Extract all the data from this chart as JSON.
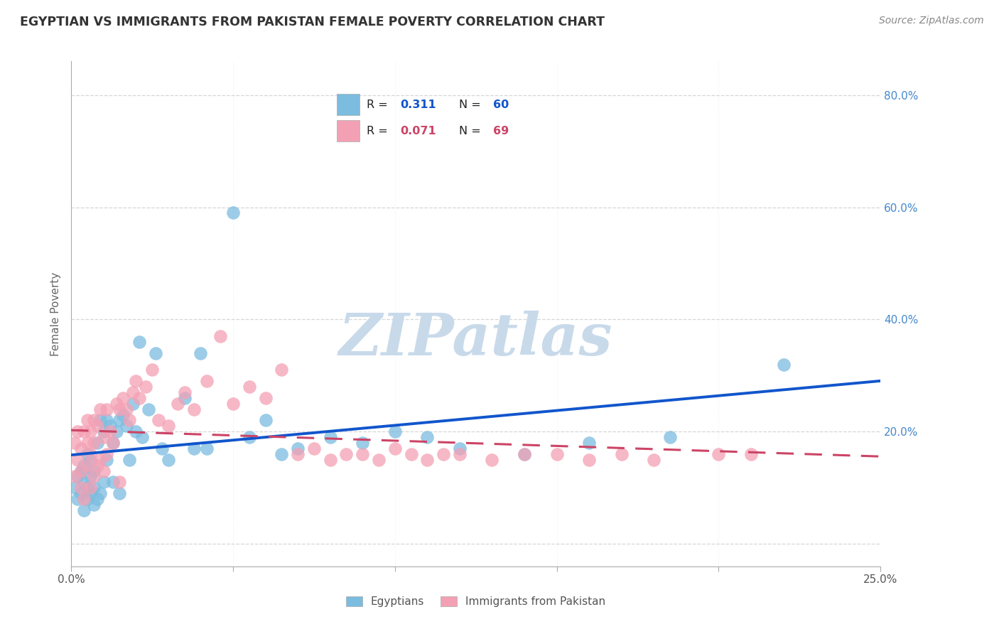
{
  "title": "EGYPTIAN VS IMMIGRANTS FROM PAKISTAN FEMALE POVERTY CORRELATION CHART",
  "source": "Source: ZipAtlas.com",
  "ylabel": "Female Poverty",
  "x_min": 0.0,
  "x_max": 0.25,
  "y_min": -0.04,
  "y_max": 0.86,
  "egyptians_color": "#7bbcdf",
  "pakistan_color": "#f4a0b4",
  "trendline_blue": "#1155cc",
  "trendline_pink": "#cc4466",
  "R_egypt": 0.311,
  "N_egypt": 60,
  "R_pakistan": 0.071,
  "N_pakistan": 69,
  "legend_text_color": "#222222",
  "legend_blue_color": "#1155cc",
  "legend_pink_color": "#cc4466",
  "watermark": "ZIPatlas",
  "watermark_color": "#c8daea",
  "egyptians_x": [
    0.001,
    0.002,
    0.002,
    0.003,
    0.003,
    0.004,
    0.004,
    0.004,
    0.005,
    0.005,
    0.005,
    0.006,
    0.006,
    0.006,
    0.007,
    0.007,
    0.007,
    0.008,
    0.008,
    0.009,
    0.009,
    0.01,
    0.01,
    0.011,
    0.011,
    0.012,
    0.013,
    0.013,
    0.014,
    0.015,
    0.015,
    0.016,
    0.017,
    0.018,
    0.019,
    0.02,
    0.021,
    0.022,
    0.024,
    0.026,
    0.028,
    0.03,
    0.035,
    0.038,
    0.04,
    0.042,
    0.05,
    0.055,
    0.06,
    0.065,
    0.07,
    0.08,
    0.09,
    0.1,
    0.11,
    0.12,
    0.14,
    0.16,
    0.185,
    0.22
  ],
  "egyptians_y": [
    0.1,
    0.08,
    0.12,
    0.09,
    0.13,
    0.06,
    0.11,
    0.14,
    0.08,
    0.1,
    0.16,
    0.09,
    0.12,
    0.15,
    0.07,
    0.1,
    0.13,
    0.08,
    0.18,
    0.09,
    0.22,
    0.11,
    0.2,
    0.15,
    0.22,
    0.21,
    0.18,
    0.11,
    0.2,
    0.09,
    0.22,
    0.23,
    0.21,
    0.15,
    0.25,
    0.2,
    0.36,
    0.19,
    0.24,
    0.34,
    0.17,
    0.15,
    0.26,
    0.17,
    0.34,
    0.17,
    0.59,
    0.19,
    0.22,
    0.16,
    0.17,
    0.19,
    0.18,
    0.2,
    0.19,
    0.17,
    0.16,
    0.18,
    0.19,
    0.32
  ],
  "pakistan_x": [
    0.001,
    0.001,
    0.002,
    0.002,
    0.003,
    0.003,
    0.003,
    0.004,
    0.004,
    0.005,
    0.005,
    0.005,
    0.006,
    0.006,
    0.006,
    0.007,
    0.007,
    0.007,
    0.008,
    0.008,
    0.009,
    0.009,
    0.01,
    0.01,
    0.011,
    0.011,
    0.012,
    0.013,
    0.014,
    0.015,
    0.015,
    0.016,
    0.017,
    0.018,
    0.019,
    0.02,
    0.021,
    0.023,
    0.025,
    0.027,
    0.03,
    0.033,
    0.035,
    0.038,
    0.042,
    0.046,
    0.05,
    0.055,
    0.06,
    0.065,
    0.07,
    0.075,
    0.08,
    0.085,
    0.09,
    0.095,
    0.1,
    0.105,
    0.11,
    0.115,
    0.12,
    0.13,
    0.14,
    0.15,
    0.16,
    0.17,
    0.18,
    0.2,
    0.21
  ],
  "pakistan_y": [
    0.18,
    0.12,
    0.15,
    0.2,
    0.1,
    0.13,
    0.17,
    0.08,
    0.2,
    0.14,
    0.18,
    0.22,
    0.1,
    0.16,
    0.2,
    0.12,
    0.18,
    0.22,
    0.14,
    0.21,
    0.15,
    0.24,
    0.13,
    0.19,
    0.16,
    0.24,
    0.2,
    0.18,
    0.25,
    0.11,
    0.24,
    0.26,
    0.24,
    0.22,
    0.27,
    0.29,
    0.26,
    0.28,
    0.31,
    0.22,
    0.21,
    0.25,
    0.27,
    0.24,
    0.29,
    0.37,
    0.25,
    0.28,
    0.26,
    0.31,
    0.16,
    0.17,
    0.15,
    0.16,
    0.16,
    0.15,
    0.17,
    0.16,
    0.15,
    0.16,
    0.16,
    0.15,
    0.16,
    0.16,
    0.15,
    0.16,
    0.15,
    0.16,
    0.16
  ]
}
